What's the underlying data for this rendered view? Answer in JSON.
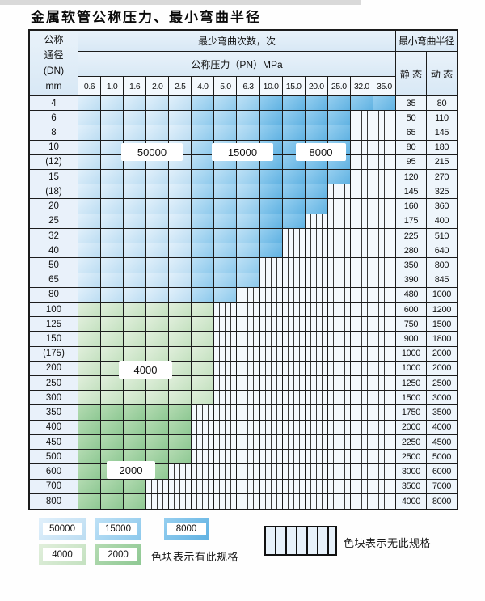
{
  "title": "金属软管公称压力、最小弯曲半径",
  "table": {
    "headers": {
      "dn_line1": "公称",
      "dn_line2": "通径",
      "dn_line3": "(DN)",
      "dn_line4": "mm",
      "bend_cycles": "最少弯曲次数，次",
      "pressure": "公称压力（PN）MPa",
      "min_bend_radius": "最小弯曲半径",
      "static": "静 态",
      "dynamic": "动 态"
    },
    "pressure_columns": [
      "0.6",
      "1.0",
      "1.6",
      "2.0",
      "2.5",
      "4.0",
      "5.0",
      "6.3",
      "10.0",
      "15.0",
      "20.0",
      "25.0",
      "32.0",
      "35.0"
    ],
    "fill_legend_codes": {
      "L": "50000",
      "M": "15000",
      "D": "8000",
      "G": "4000",
      "E": "2000",
      "H": "no-spec-hatch"
    },
    "rows": [
      {
        "dn": "4",
        "fills": "LLLLLMMMDDDDDD",
        "static": "35",
        "dynamic": "80"
      },
      {
        "dn": "6",
        "fills": "LLLLLMMMDDDDHH",
        "static": "50",
        "dynamic": "110"
      },
      {
        "dn": "8",
        "fills": "LLLLLMMMDDDDHH",
        "static": "65",
        "dynamic": "145"
      },
      {
        "dn": "10",
        "fills": "LLLLLMMMDDDDHH",
        "static": "80",
        "dynamic": "180"
      },
      {
        "dn": "(12)",
        "fills": "LLLLLMMMDDDDHH",
        "static": "95",
        "dynamic": "215"
      },
      {
        "dn": "15",
        "fills": "LLLLLMMMDDDDHH",
        "static": "120",
        "dynamic": "270"
      },
      {
        "dn": "(18)",
        "fills": "LLLLLMMMDDDHHH",
        "static": "145",
        "dynamic": "325"
      },
      {
        "dn": "20",
        "fills": "LLLLLMMMDDDHHH",
        "static": "160",
        "dynamic": "360"
      },
      {
        "dn": "25",
        "fills": "LLLLLMMMDDHHHH",
        "static": "175",
        "dynamic": "400"
      },
      {
        "dn": "32",
        "fills": "LLLLLMMMDHHHHH",
        "static": "225",
        "dynamic": "510"
      },
      {
        "dn": "40",
        "fills": "LLLLLMMMDHHHHH",
        "static": "280",
        "dynamic": "640"
      },
      {
        "dn": "50",
        "fills": "LLLLLMMMHHHHHH",
        "static": "350",
        "dynamic": "800"
      },
      {
        "dn": "65",
        "fills": "LLLLLMMMHHHHHH",
        "static": "390",
        "dynamic": "845"
      },
      {
        "dn": "80",
        "fills": "LLLLLMMHHHHHHH",
        "static": "480",
        "dynamic": "1000"
      },
      {
        "dn": "100",
        "fills": "GGGGGGHHHHHHHH",
        "static": "600",
        "dynamic": "1200"
      },
      {
        "dn": "125",
        "fills": "GGGGGGHHHHHHHH",
        "static": "750",
        "dynamic": "1500"
      },
      {
        "dn": "150",
        "fills": "GGGGGGHHHHHHHH",
        "static": "900",
        "dynamic": "1800"
      },
      {
        "dn": "(175)",
        "fills": "GGGGGGHHHHHHHH",
        "static": "1000",
        "dynamic": "2000"
      },
      {
        "dn": "200",
        "fills": "GGGGGGHHHHHHHH",
        "static": "1000",
        "dynamic": "2000"
      },
      {
        "dn": "250",
        "fills": "GGGGGGHHHHHHHH",
        "static": "1250",
        "dynamic": "2500"
      },
      {
        "dn": "300",
        "fills": "GGGGGGHHHHHHHH",
        "static": "1500",
        "dynamic": "3000"
      },
      {
        "dn": "350",
        "fills": "EEEEEHHHHHHHHH",
        "static": "1750",
        "dynamic": "3500"
      },
      {
        "dn": "400",
        "fills": "EEEEEHHHHHHHHH",
        "static": "2000",
        "dynamic": "4000"
      },
      {
        "dn": "450",
        "fills": "EEEEEHHHHHHHHH",
        "static": "2250",
        "dynamic": "4500"
      },
      {
        "dn": "500",
        "fills": "EEEEEHHHHHHHHH",
        "static": "2500",
        "dynamic": "5000"
      },
      {
        "dn": "600",
        "fills": "EEEEHHHHHHHHHH",
        "static": "3000",
        "dynamic": "6000"
      },
      {
        "dn": "700",
        "fills": "EEEHHHHHHHHHHH",
        "static": "3500",
        "dynamic": "7000"
      },
      {
        "dn": "800",
        "fills": "EEEHHHHHHHHHHH",
        "static": "4000",
        "dynamic": "8000"
      }
    ]
  },
  "overlays": [
    {
      "label": "50000"
    },
    {
      "label": "15000"
    },
    {
      "label": "8000"
    },
    {
      "label": "4000"
    },
    {
      "label": "2000"
    }
  ],
  "legend": {
    "items": [
      {
        "label": "50000",
        "color": "#c9e4f6"
      },
      {
        "label": "15000",
        "color": "#9fd3f1"
      },
      {
        "label": "8000",
        "color": "#72bde8"
      },
      {
        "label": "4000",
        "color": "#d2e8cb"
      },
      {
        "label": "2000",
        "color": "#9ccf9f"
      }
    ],
    "has_spec_text": "色块表示有此规格",
    "no_spec_text": "色块表示无此规格"
  },
  "colors": {
    "bands": {
      "b50000": {
        "from": "#e1f0fb",
        "to": "#bcddf2"
      },
      "b15000": {
        "from": "#bee1f6",
        "to": "#8dc9ec"
      },
      "b8000": {
        "from": "#96cff0",
        "to": "#60b2e2"
      },
      "b4000": {
        "from": "#e1efdc",
        "to": "#c4e1c0"
      },
      "b2000": {
        "from": "#b4dbb2",
        "to": "#8ec893"
      }
    },
    "grid_line": "#1c1c1c",
    "hatch_line": "#3a3a3a"
  }
}
